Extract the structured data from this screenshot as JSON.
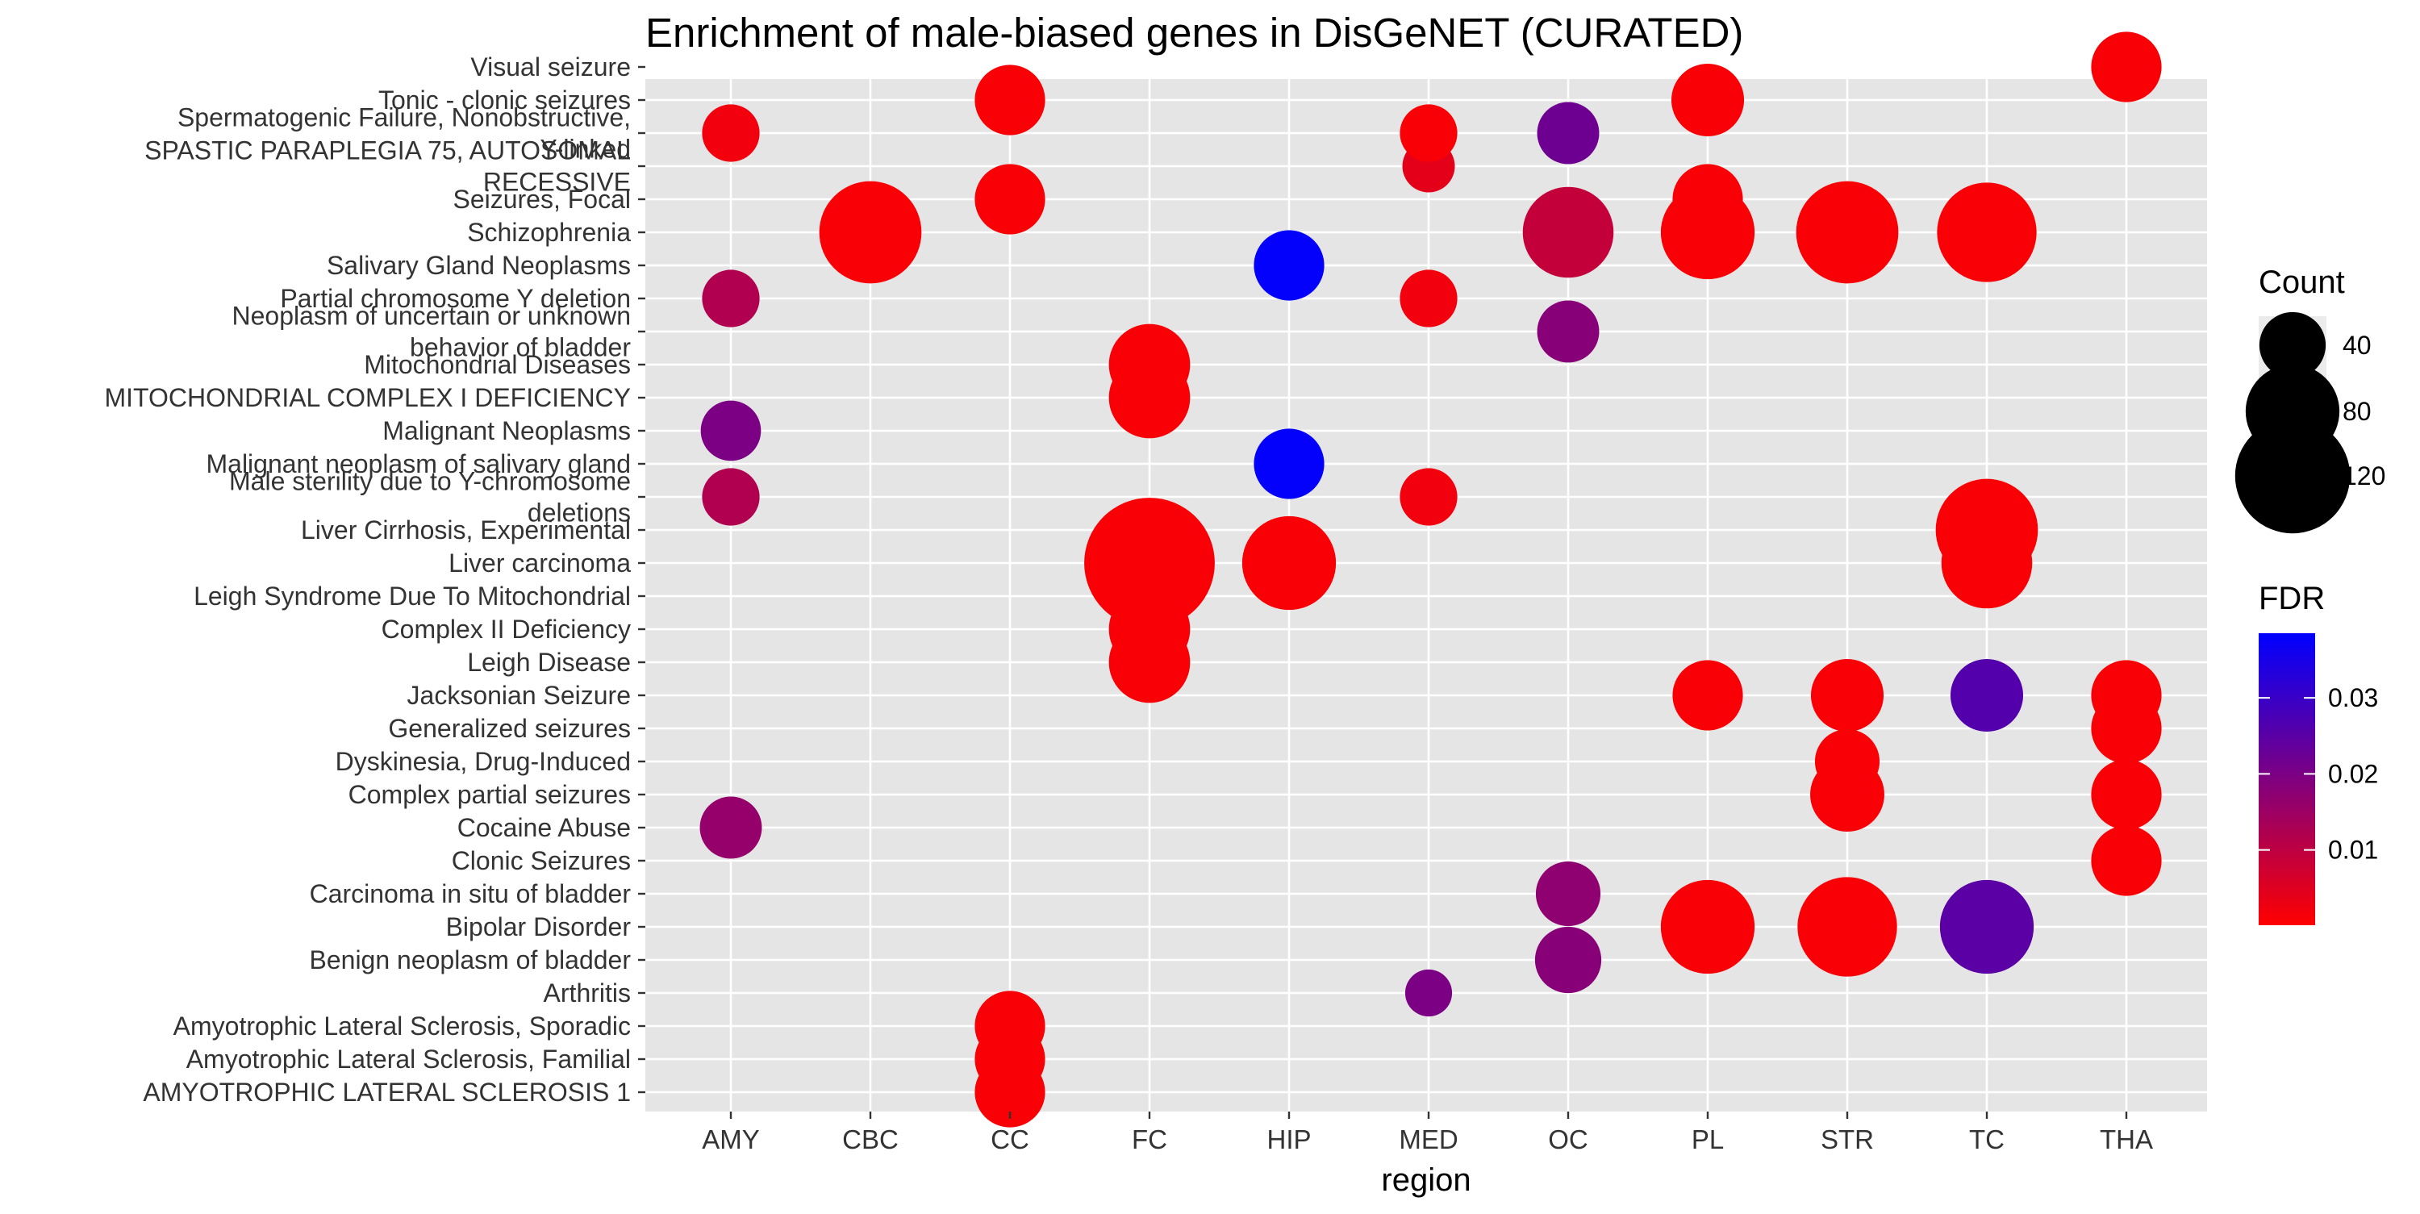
{
  "chart_data": {
    "type": "scatter",
    "title": "Enrichment of male-biased genes in DisGeNET (CURATED)",
    "xlabel": "region",
    "ylabel": "",
    "categories": [
      "AMY",
      "CBC",
      "CC",
      "FC",
      "HIP",
      "MED",
      "OC",
      "PL",
      "STR",
      "TC",
      "THA"
    ],
    "terms": [
      "AMYOTROPHIC LATERAL SCLEROSIS 1",
      "Amyotrophic Lateral Sclerosis, Familial",
      "Amyotrophic Lateral Sclerosis, Sporadic",
      "Arthritis",
      "Benign neoplasm of bladder",
      "Bipolar Disorder",
      "Carcinoma in situ of bladder",
      "Clonic Seizures",
      "Cocaine Abuse",
      "Complex partial seizures",
      "Dyskinesia, Drug-Induced",
      "Generalized seizures",
      "Jacksonian Seizure",
      "Leigh Disease",
      "Complex II Deficiency",
      "Leigh Syndrome Due To Mitochondrial",
      "Liver carcinoma",
      "Liver Cirrhosis, Experimental",
      "Male sterility due to Y-chromosome\ndeletions",
      "Malignant neoplasm of salivary gland",
      "Malignant Neoplasms",
      "MITOCHONDRIAL COMPLEX I DEFICIENCY",
      "Mitochondrial Diseases",
      "Neoplasm of uncertain or unknown\nbehavior of bladder",
      "Partial chromosome Y deletion",
      "Salivary Gland Neoplasms",
      "Schizophrenia",
      "Seizures, Focal",
      "SPASTIC PARAPLEGIA 75, AUTOSOMAL\nRECESSIVE",
      "Spermatogenic Failure, Nonobstructive,\nY-linked",
      "Tonic - clonic seizures",
      "Visual seizure"
    ],
    "points": [
      {
        "region": "CC",
        "term": "AMYOTROPHIC LATERAL SCLEROSIS 1",
        "count": 45,
        "fdr": 0.001
      },
      {
        "region": "CC",
        "term": "Amyotrophic Lateral Sclerosis, Familial",
        "count": 45,
        "fdr": 0.001
      },
      {
        "region": "CC",
        "term": "Amyotrophic Lateral Sclerosis, Sporadic",
        "count": 45,
        "fdr": 0.001
      },
      {
        "region": "MED",
        "term": "Arthritis",
        "count": 20,
        "fdr": 0.02
      },
      {
        "region": "OC",
        "term": "Benign neoplasm of bladder",
        "count": 40,
        "fdr": 0.018
      },
      {
        "region": "PL",
        "term": "Bipolar Disorder",
        "count": 80,
        "fdr": 0.001
      },
      {
        "region": "STR",
        "term": "Bipolar Disorder",
        "count": 90,
        "fdr": 0.001
      },
      {
        "region": "TC",
        "term": "Bipolar Disorder",
        "count": 80,
        "fdr": 0.025
      },
      {
        "region": "OC",
        "term": "Carcinoma in situ of bladder",
        "count": 38,
        "fdr": 0.017
      },
      {
        "region": "THA",
        "term": "Clonic Seizures",
        "count": 45,
        "fdr": 0.001
      },
      {
        "region": "AMY",
        "term": "Cocaine Abuse",
        "count": 35,
        "fdr": 0.016
      },
      {
        "region": "STR",
        "term": "Complex partial seizures",
        "count": 50,
        "fdr": 0.001
      },
      {
        "region": "THA",
        "term": "Complex partial seizures",
        "count": 45,
        "fdr": 0.001
      },
      {
        "region": "STR",
        "term": "Dyskinesia, Drug-Induced",
        "count": 38,
        "fdr": 0.001
      },
      {
        "region": "THA",
        "term": "Generalized seizures",
        "count": 45,
        "fdr": 0.001
      },
      {
        "region": "PL",
        "term": "Jacksonian Seizure",
        "count": 45,
        "fdr": 0.001
      },
      {
        "region": "STR",
        "term": "Jacksonian Seizure",
        "count": 48,
        "fdr": 0.001
      },
      {
        "region": "TC",
        "term": "Jacksonian Seizure",
        "count": 48,
        "fdr": 0.026
      },
      {
        "region": "THA",
        "term": "Jacksonian Seizure",
        "count": 45,
        "fdr": 0.001
      },
      {
        "region": "FC",
        "term": "Leigh Disease",
        "count": 60,
        "fdr": 0.001
      },
      {
        "region": "FC",
        "term": "Complex II Deficiency",
        "count": 60,
        "fdr": 0.001
      },
      {
        "region": "FC",
        "term": "Liver carcinoma",
        "count": 155,
        "fdr": 0.001
      },
      {
        "region": "HIP",
        "term": "Liver carcinoma",
        "count": 80,
        "fdr": 0.001
      },
      {
        "region": "TC",
        "term": "Liver carcinoma",
        "count": 75,
        "fdr": 0.001
      },
      {
        "region": "TC",
        "term": "Liver Cirrhosis, Experimental",
        "count": 95,
        "fdr": 0.001
      },
      {
        "region": "AMY",
        "term": "Male sterility due to Y-chromosome\ndeletions",
        "count": 30,
        "fdr": 0.012
      },
      {
        "region": "MED",
        "term": "Male sterility due to Y-chromosome\ndeletions",
        "count": 30,
        "fdr": 0.002
      },
      {
        "region": "HIP",
        "term": "Malignant neoplasm of salivary gland",
        "count": 45,
        "fdr": 0.038
      },
      {
        "region": "AMY",
        "term": "Malignant Neoplasms",
        "count": 33,
        "fdr": 0.02
      },
      {
        "region": "FC",
        "term": "MITOCHONDRIAL COMPLEX I DEFICIENCY",
        "count": 60,
        "fdr": 0.001
      },
      {
        "region": "FC",
        "term": "Mitochondrial Diseases",
        "count": 60,
        "fdr": 0.001
      },
      {
        "region": "OC",
        "term": "Neoplasm of uncertain or unknown\nbehavior of bladder",
        "count": 35,
        "fdr": 0.018
      },
      {
        "region": "AMY",
        "term": "Partial chromosome Y deletion",
        "count": 30,
        "fdr": 0.012
      },
      {
        "region": "MED",
        "term": "Partial chromosome Y deletion",
        "count": 30,
        "fdr": 0.002
      },
      {
        "region": "HIP",
        "term": "Salivary Gland Neoplasms",
        "count": 45,
        "fdr": 0.038
      },
      {
        "region": "CBC",
        "term": "Schizophrenia",
        "count": 95,
        "fdr": 0.001
      },
      {
        "region": "OC",
        "term": "Schizophrenia",
        "count": 75,
        "fdr": 0.009
      },
      {
        "region": "PL",
        "term": "Schizophrenia",
        "count": 80,
        "fdr": 0.001
      },
      {
        "region": "STR",
        "term": "Schizophrenia",
        "count": 95,
        "fdr": 0.001
      },
      {
        "region": "TC",
        "term": "Schizophrenia",
        "count": 90,
        "fdr": 0.001
      },
      {
        "region": "CC",
        "term": "Seizures, Focal",
        "count": 45,
        "fdr": 0.001
      },
      {
        "region": "PL",
        "term": "Seizures, Focal",
        "count": 45,
        "fdr": 0.001
      },
      {
        "region": "MED",
        "term": "SPASTIC PARAPLEGIA 75, AUTOSOMAL\nRECESSIVE",
        "count": 25,
        "fdr": 0.004
      },
      {
        "region": "AMY",
        "term": "Spermatogenic Failure, Nonobstructive,\nY-linked",
        "count": 30,
        "fdr": 0.002
      },
      {
        "region": "MED",
        "term": "Spermatogenic Failure, Nonobstructive,\nY-linked",
        "count": 30,
        "fdr": 0.001
      },
      {
        "region": "OC",
        "term": "Spermatogenic Failure, Nonobstructive,\nY-linked",
        "count": 35,
        "fdr": 0.022
      },
      {
        "region": "CC",
        "term": "Tonic - clonic seizures",
        "count": 45,
        "fdr": 0.001
      },
      {
        "region": "PL",
        "term": "Tonic - clonic seizures",
        "count": 48,
        "fdr": 0.001
      },
      {
        "region": "THA",
        "term": "Visual seizure",
        "count": 45,
        "fdr": 0.001
      }
    ],
    "size_legend": {
      "title": "Count",
      "values": [
        40,
        80,
        120
      ]
    },
    "color_legend": {
      "title": "FDR",
      "ticks": [
        0.01,
        0.02,
        0.03
      ],
      "tick_labels": [
        "0.01",
        "0.02",
        "0.03"
      ],
      "low_color": "#ff0000",
      "high_color": "#0000ff",
      "range": [
        0.0001,
        0.0385
      ]
    },
    "grid": true,
    "legend_position": "right",
    "panel_background": "#e5e5e5"
  }
}
